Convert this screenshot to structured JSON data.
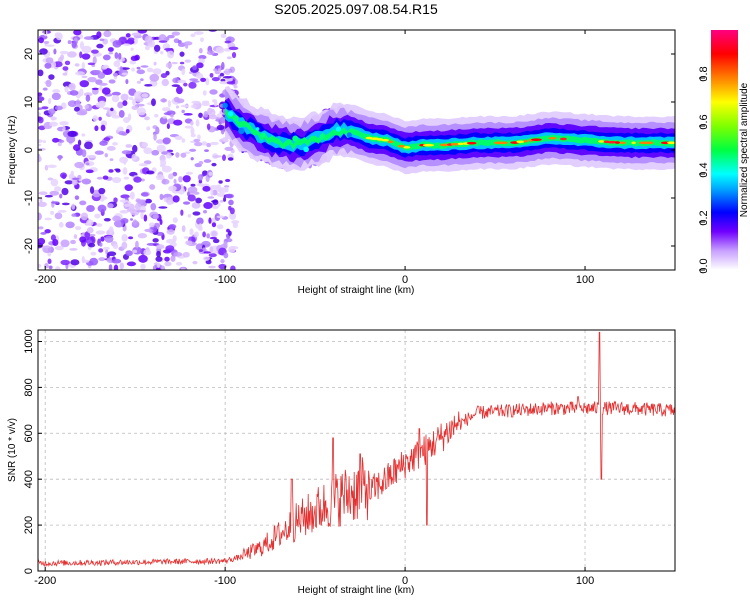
{
  "title": "S205.2025.097.08.54.R15",
  "chart_data": [
    {
      "type": "heatmap",
      "title": "S205.2025.097.08.54.R15",
      "xlabel": "Height of straight line (km)",
      "ylabel": "Frequency (Hz)",
      "xlim": [
        -204,
        150
      ],
      "ylim": [
        -25,
        25
      ],
      "x_ticks": [
        -200,
        -100,
        0,
        100
      ],
      "y_ticks": [
        -20,
        -10,
        0,
        10,
        20
      ],
      "colorbar": {
        "label": "Normalized spectral amplitude",
        "range": [
          0,
          1
        ],
        "ticks": [
          0.0,
          0.2,
          0.4,
          0.6,
          0.8
        ],
        "colors": [
          "#ffffff",
          "#c8a0ff",
          "#6400ff",
          "#0000ff",
          "#00ffff",
          "#00ff00",
          "#ffff00",
          "#ff8000",
          "#ff0000",
          "#ff0080"
        ]
      },
      "ridge": {
        "description_points_x": [
          -100,
          -90,
          -80,
          -70,
          -60,
          -50,
          -40,
          -30,
          -20,
          -10,
          0,
          10,
          20,
          40,
          60,
          80,
          100,
          120,
          150
        ],
        "description_points_y": [
          8,
          5,
          3,
          1.5,
          1,
          2,
          4,
          4,
          2.5,
          2,
          0.5,
          1,
          1,
          1.5,
          1.5,
          2.5,
          2,
          1.5,
          1.5
        ]
      },
      "grid": true
    },
    {
      "type": "line",
      "xlabel": "Height of straight line (km)",
      "ylabel": "SNR (10 * v/v)",
      "xlim": [
        -204,
        150
      ],
      "ylim": [
        0,
        1050
      ],
      "x_ticks": [
        -200,
        -100,
        0,
        100
      ],
      "y_ticks": [
        0,
        200,
        400,
        600,
        800,
        1000
      ],
      "series_color": "#e53030",
      "trend_x": [
        -204,
        -150,
        -100,
        -90,
        -80,
        -70,
        -60,
        -50,
        -40,
        -30,
        -20,
        -10,
        0,
        10,
        20,
        30,
        40,
        60,
        80,
        100,
        108,
        110,
        112,
        120,
        150
      ],
      "trend_y": [
        30,
        35,
        40,
        60,
        90,
        140,
        190,
        230,
        270,
        300,
        320,
        380,
        450,
        500,
        560,
        630,
        680,
        690,
        700,
        700,
        700,
        700,
        700,
        700,
        690
      ],
      "spikes": [
        {
          "x": -63,
          "y": 400
        },
        {
          "x": -40,
          "y": 580
        },
        {
          "x": -25,
          "y": 510
        },
        {
          "x": 8,
          "y": 620
        },
        {
          "x": 12,
          "y": 200
        },
        {
          "x": 96,
          "y": 760
        },
        {
          "x": 108,
          "y": 1040
        },
        {
          "x": 109,
          "y": 400
        }
      ],
      "grid": true
    }
  ]
}
